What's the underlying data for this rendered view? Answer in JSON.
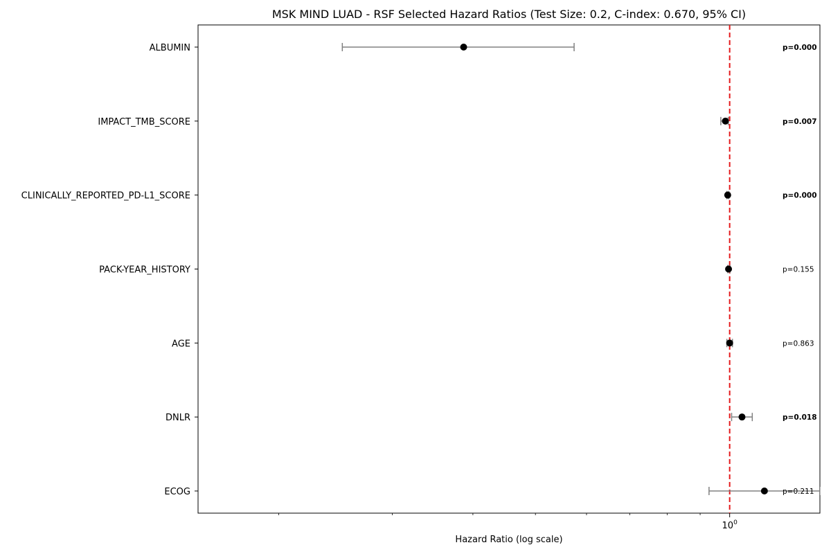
{
  "chart_data": {
    "type": "forest",
    "title": "MSK MIND LUAD - RSF Selected Hazard Ratios (Test Size: 0.2, C-index: 0.670, 95% CI)",
    "xlabel": "Hazard Ratio (log scale)",
    "x_scale": "log",
    "xlim": [
      0.15,
      1.38
    ],
    "reference_line": 1.0,
    "reference_color": "#e41a1c",
    "x_tick_major": "10^0",
    "x_tick_minor_values": [
      0.2,
      0.3,
      0.4,
      0.5,
      0.6,
      0.7,
      0.8,
      0.9
    ],
    "point_color": "#000000",
    "ci_color": "#808080",
    "rows": [
      {
        "label": "ALBUMIN",
        "hr": 0.387,
        "ci_low": 0.251,
        "ci_high": 0.574,
        "p_text": "p=0.000",
        "significant": true
      },
      {
        "label": "IMPACT_TMB_SCORE",
        "hr": 0.985,
        "ci_low": 0.969,
        "ci_high": 0.995,
        "p_text": "p=0.007",
        "significant": true
      },
      {
        "label": "CLINICALLY_REPORTED_PD-L1_SCORE",
        "hr": 0.993,
        "ci_low": 0.99,
        "ci_high": 0.997,
        "p_text": "p=0.000",
        "significant": true
      },
      {
        "label": "PACK-YEAR_HISTORY",
        "hr": 0.996,
        "ci_low": 0.993,
        "ci_high": 1.001,
        "p_text": "p=0.155",
        "significant": false
      },
      {
        "label": "AGE",
        "hr": 1.0,
        "ci_low": 0.99,
        "ci_high": 1.01,
        "p_text": "p=0.863",
        "significant": false
      },
      {
        "label": "DNLR",
        "hr": 1.045,
        "ci_low": 1.007,
        "ci_high": 1.084,
        "p_text": "p=0.018",
        "significant": true
      },
      {
        "label": "ECOG",
        "hr": 1.132,
        "ci_low": 0.929,
        "ci_high": 1.379,
        "p_text": "p=0.211",
        "significant": false
      }
    ]
  }
}
